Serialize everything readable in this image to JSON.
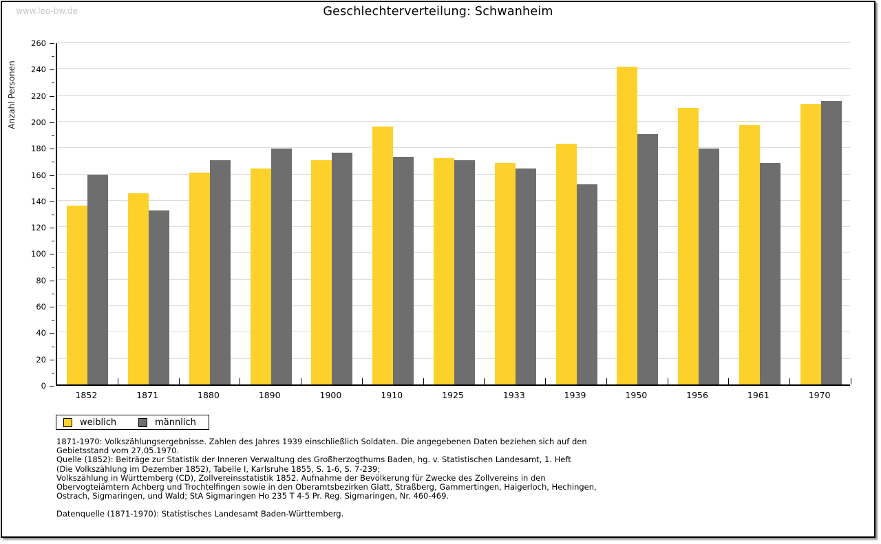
{
  "watermark": "www.leo-bw.de",
  "chart_data": {
    "type": "bar",
    "title": "Geschlechterverteilung: Schwanheim",
    "xlabel": "",
    "ylabel": "Anzahl Personen",
    "categories": [
      "1852",
      "1871",
      "1880",
      "1890",
      "1900",
      "1910",
      "1925",
      "1933",
      "1939",
      "1950",
      "1956",
      "1961",
      "1970"
    ],
    "series": [
      {
        "name": "weiblich",
        "color": "#FCD12B",
        "values": [
          136,
          145,
          161,
          164,
          170,
          196,
          172,
          168,
          183,
          241,
          210,
          197,
          213
        ]
      },
      {
        "name": "männlich",
        "color": "#6E6E6E",
        "values": [
          159,
          132,
          170,
          179,
          176,
          173,
          170,
          164,
          152,
          190,
          179,
          168,
          215
        ]
      }
    ],
    "ylim": [
      0,
      260
    ],
    "ytick_step": 20,
    "ytick_minor_step": 10,
    "grid": true,
    "gridline_color": "#dcdcdc",
    "legend_position": "bottom-left"
  },
  "footnotes": {
    "lines": [
      "1871-1970: Volkszählungsergebnisse. Zahlen des Jahres 1939 einschließlich Soldaten. Die angegebenen Daten beziehen sich auf den",
      "Gebietsstand vom 27.05.1970.",
      "Quelle (1852): Beiträge zur Statistik der Inneren Verwaltung des Großherzogthums Baden, hg. v. Statistischen Landesamt, 1. Heft",
      "(Die Volkszählung im Dezember 1852), Tabelle I, Karlsruhe 1855, S. 1-6, S. 7-239;",
      "Volkszählung in Württemberg (CD), Zollvereinsstatistik 1852. Aufnahme der Bevölkerung für Zwecke des Zollvereins in den",
      "Obervogteiämtern Achberg und Trochtelfingen sowie in den Oberamtsbezirken Glatt, Straßberg, Gammertingen, Haigerloch, Hechingen,",
      "Ostrach, Sigmaringen, und Wald; StA Sigmaringen Ho 235 T 4-5 Pr. Reg. Sigmaringen, Nr. 460-469."
    ],
    "datasource": "Datenquelle (1871-1970): Statistisches Landesamt Baden-Württemberg."
  }
}
